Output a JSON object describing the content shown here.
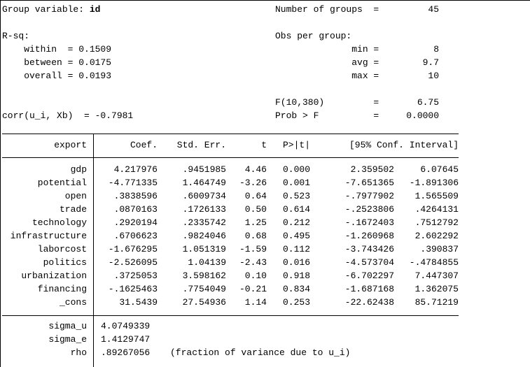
{
  "summary": {
    "l0_left_a": "Group variable: ",
    "l0_left_b": "id",
    "l0_right": "Number of groups  =         45",
    "l2_left": "R-sq:",
    "l2_right": "Obs per group:",
    "l3_left": "    within  = 0.1509",
    "l3_right": "              min =          8",
    "l4_left": "    between = 0.0175",
    "l4_right": "              avg =        9.7",
    "l5_left": "    overall = 0.0193",
    "l5_right": "              max =         10",
    "l7_right": "F(10,380)         =       6.75",
    "l8_left": "corr(u_i, Xb)  = -0.7981",
    "l8_right": "Prob > F          =     0.0000"
  },
  "table": {
    "depvar": "export",
    "headers": {
      "coef": "Coef.",
      "se": "Std. Err.",
      "t": "t",
      "p": "P>|t|",
      "ci": "[95% Conf. Interval]"
    },
    "rows": [
      {
        "var": "gdp",
        "coef": "4.217976",
        "se": ".9451985",
        "t": "4.46",
        "p": "0.000",
        "lo": "2.359502",
        "hi": "6.07645"
      },
      {
        "var": "potential",
        "coef": "-4.771335",
        "se": "1.464749",
        "t": "-3.26",
        "p": "0.001",
        "lo": "-7.651365",
        "hi": "-1.891306"
      },
      {
        "var": "open",
        "coef": ".3838596",
        "se": ".6009734",
        "t": "0.64",
        "p": "0.523",
        "lo": "-.7977902",
        "hi": "1.565509"
      },
      {
        "var": "trade",
        "coef": ".0870163",
        "se": ".1726133",
        "t": "0.50",
        "p": "0.614",
        "lo": "-.2523806",
        "hi": ".4264131"
      },
      {
        "var": "technology",
        "coef": ".2920194",
        "se": ".2335742",
        "t": "1.25",
        "p": "0.212",
        "lo": "-.1672403",
        "hi": ".7512792"
      },
      {
        "var": "infrastructure",
        "coef": ".6706623",
        "se": ".9824046",
        "t": "0.68",
        "p": "0.495",
        "lo": "-1.260968",
        "hi": "2.602292"
      },
      {
        "var": "laborcost",
        "coef": "-1.676295",
        "se": "1.051319",
        "t": "-1.59",
        "p": "0.112",
        "lo": "-3.743426",
        "hi": ".390837"
      },
      {
        "var": "politics",
        "coef": "-2.526095",
        "se": "1.04139",
        "t": "-2.43",
        "p": "0.016",
        "lo": "-4.573704",
        "hi": "-.4784855"
      },
      {
        "var": "urbanization",
        "coef": ".3725053",
        "se": "3.598162",
        "t": "0.10",
        "p": "0.918",
        "lo": "-6.702297",
        "hi": "7.447307"
      },
      {
        "var": "financing",
        "coef": "-.1625463",
        "se": ".7754049",
        "t": "-0.21",
        "p": "0.834",
        "lo": "-1.687168",
        "hi": "1.362075"
      },
      {
        "var": "_cons",
        "coef": "31.5439",
        "se": "27.54936",
        "t": "1.14",
        "p": "0.253",
        "lo": "-22.62438",
        "hi": "85.71219"
      }
    ],
    "footer": [
      {
        "var": "sigma_u",
        "value": "4.0749339",
        "note": ""
      },
      {
        "var": "sigma_e",
        "value": "1.4129747",
        "note": ""
      },
      {
        "var": "rho",
        "value": ".89267056",
        "note": "(fraction of variance due to u_i)"
      }
    ]
  }
}
